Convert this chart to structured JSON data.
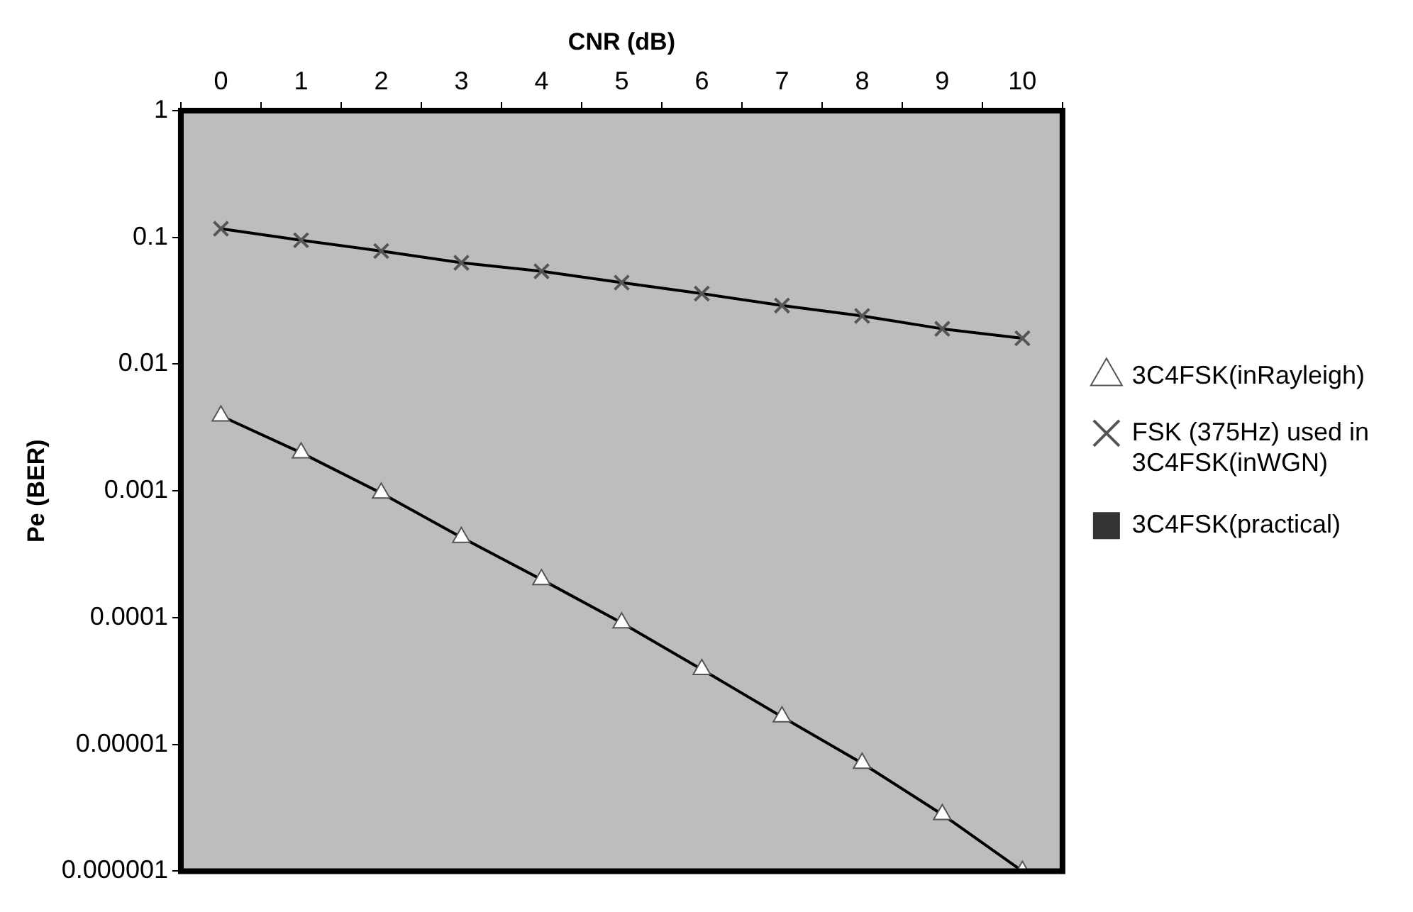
{
  "chart_data": {
    "type": "line",
    "xlabel": "CNR (dB)",
    "ylabel": "Pe (BER)",
    "categories": [
      "0",
      "1",
      "2",
      "3",
      "4",
      "5",
      "6",
      "7",
      "8",
      "9",
      "10"
    ],
    "series": [
      {
        "name": "3C4FSK(inRayleigh)",
        "color": "#000000",
        "marker": "triangle",
        "values": [
          0.0039,
          0.002,
          0.00096,
          0.00043,
          0.0002,
          9.1e-05,
          3.9e-05,
          1.65e-05,
          7.1e-06,
          2.8e-06,
          1e-06
        ]
      },
      {
        "name": "FSK (375Hz) used in 3C4FSK(inWGN)",
        "color": "#000000",
        "marker": "cross",
        "values": [
          0.117,
          0.095,
          0.078,
          0.063,
          0.054,
          0.044,
          0.036,
          0.029,
          0.024,
          0.019,
          0.016
        ]
      },
      {
        "name": "3C4FSK(practical)",
        "color": "#333333",
        "marker": "square",
        "values": [
          null,
          null,
          null,
          null,
          null,
          null,
          null,
          null,
          null,
          null,
          null
        ]
      }
    ],
    "log": "y",
    "ylim": [
      1e-06,
      1
    ],
    "yticks": [
      {
        "value": 1e-06,
        "label": "0.000001"
      },
      {
        "value": 1e-05,
        "label": "0.00001"
      },
      0.0001,
      0.001,
      0.01,
      0.1,
      1
    ],
    "grid": false,
    "legend": "right",
    "line_style": "solid"
  }
}
